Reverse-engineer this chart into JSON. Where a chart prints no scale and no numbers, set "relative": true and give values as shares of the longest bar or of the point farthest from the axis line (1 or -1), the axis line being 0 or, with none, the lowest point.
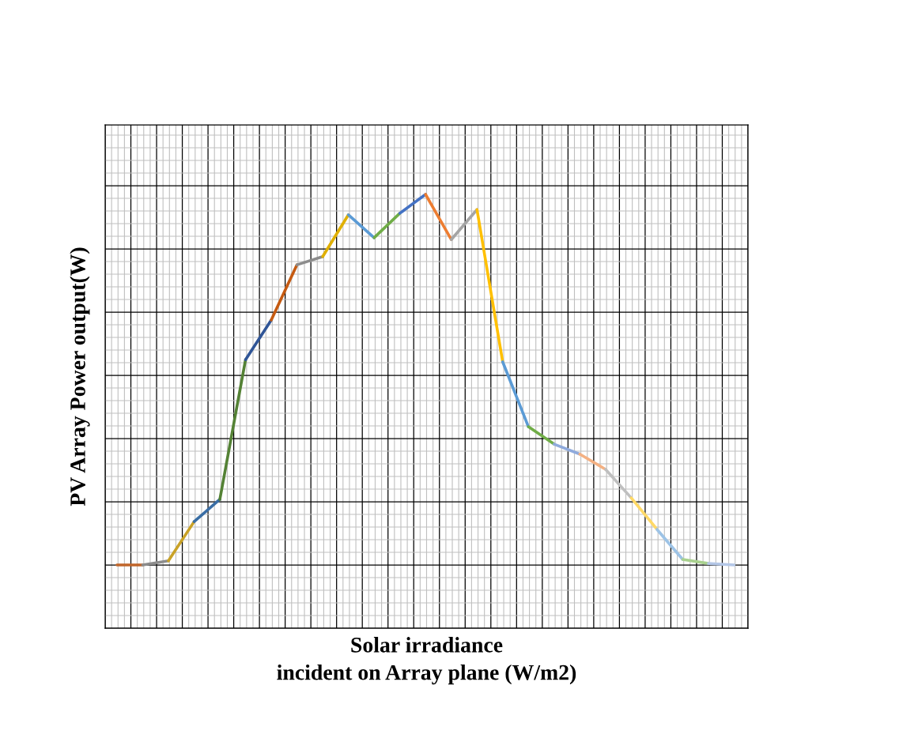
{
  "chart_data": {
    "type": "line",
    "relative": true,
    "grid": true,
    "marker": "none",
    "line_style": "solid",
    "xlabel": "Solar irradiance\nincident on Array plane (W/m2)",
    "ylabel": "PV Array Power output(W)",
    "categories": [
      null,
      null,
      null,
      null,
      null,
      null,
      null,
      null,
      null,
      null,
      null,
      null,
      null,
      null,
      null,
      null,
      null,
      null,
      null,
      null,
      null,
      null,
      null,
      null,
      null
    ],
    "series": [
      {
        "color": "#c0652a",
        "values": [
          0,
          0,
          null,
          null,
          null,
          null,
          null,
          null,
          null,
          null,
          null,
          null,
          null,
          null,
          null,
          null,
          null,
          null,
          null,
          null,
          null,
          null,
          null,
          null,
          null
        ]
      },
      {
        "color": "#8c8c8c",
        "values": [
          null,
          0,
          0.011,
          null,
          null,
          null,
          null,
          null,
          null,
          null,
          null,
          null,
          null,
          null,
          null,
          null,
          null,
          null,
          null,
          null,
          null,
          null,
          null,
          null,
          null
        ]
      },
      {
        "color": "#c9a227",
        "values": [
          null,
          null,
          0.011,
          0.117,
          null,
          null,
          null,
          null,
          null,
          null,
          null,
          null,
          null,
          null,
          null,
          null,
          null,
          null,
          null,
          null,
          null,
          null,
          null,
          null,
          null
        ]
      },
      {
        "color": "#3a6ea5",
        "values": [
          null,
          null,
          null,
          0.117,
          0.177,
          null,
          null,
          null,
          null,
          null,
          null,
          null,
          null,
          null,
          null,
          null,
          null,
          null,
          null,
          null,
          null,
          null,
          null,
          null,
          null
        ]
      },
      {
        "color": "#548235",
        "values": [
          null,
          null,
          null,
          null,
          0.177,
          0.554,
          null,
          null,
          null,
          null,
          null,
          null,
          null,
          null,
          null,
          null,
          null,
          null,
          null,
          null,
          null,
          null,
          null,
          null,
          null
        ]
      },
      {
        "color": "#2f5597",
        "values": [
          null,
          null,
          null,
          null,
          null,
          0.554,
          0.661,
          null,
          null,
          null,
          null,
          null,
          null,
          null,
          null,
          null,
          null,
          null,
          null,
          null,
          null,
          null,
          null,
          null,
          null
        ]
      },
      {
        "color": "#c55a11",
        "values": [
          null,
          null,
          null,
          null,
          null,
          null,
          0.661,
          0.81,
          null,
          null,
          null,
          null,
          null,
          null,
          null,
          null,
          null,
          null,
          null,
          null,
          null,
          null,
          null,
          null,
          null
        ]
      },
      {
        "color": "#8c8c8c",
        "values": [
          null,
          null,
          null,
          null,
          null,
          null,
          null,
          0.81,
          0.832,
          null,
          null,
          null,
          null,
          null,
          null,
          null,
          null,
          null,
          null,
          null,
          null,
          null,
          null,
          null,
          null
        ]
      },
      {
        "color": "#e0b000",
        "values": [
          null,
          null,
          null,
          null,
          null,
          null,
          null,
          null,
          0.832,
          0.945,
          null,
          null,
          null,
          null,
          null,
          null,
          null,
          null,
          null,
          null,
          null,
          null,
          null,
          null,
          null
        ]
      },
      {
        "color": "#5b9bd5",
        "values": [
          null,
          null,
          null,
          null,
          null,
          null,
          null,
          null,
          null,
          0.945,
          0.883,
          null,
          null,
          null,
          null,
          null,
          null,
          null,
          null,
          null,
          null,
          null,
          null,
          null,
          null
        ]
      },
      {
        "color": "#70ad47",
        "values": [
          null,
          null,
          null,
          null,
          null,
          null,
          null,
          null,
          null,
          null,
          0.883,
          0.949,
          null,
          null,
          null,
          null,
          null,
          null,
          null,
          null,
          null,
          null,
          null,
          null,
          null
        ]
      },
      {
        "color": "#4472c4",
        "values": [
          null,
          null,
          null,
          null,
          null,
          null,
          null,
          null,
          null,
          null,
          null,
          0.949,
          1,
          null,
          null,
          null,
          null,
          null,
          null,
          null,
          null,
          null,
          null,
          null,
          null
        ]
      },
      {
        "color": "#ed7d31",
        "values": [
          null,
          null,
          null,
          null,
          null,
          null,
          null,
          null,
          null,
          null,
          null,
          null,
          1,
          0.878,
          null,
          null,
          null,
          null,
          null,
          null,
          null,
          null,
          null,
          null,
          null
        ]
      },
      {
        "color": "#a5a5a5",
        "values": [
          null,
          null,
          null,
          null,
          null,
          null,
          null,
          null,
          null,
          null,
          null,
          null,
          null,
          0.878,
          0.959,
          null,
          null,
          null,
          null,
          null,
          null,
          null,
          null,
          null,
          null
        ]
      },
      {
        "color": "#ffc000",
        "values": [
          null,
          null,
          null,
          null,
          null,
          null,
          null,
          null,
          null,
          null,
          null,
          null,
          null,
          null,
          0.959,
          0.548,
          null,
          null,
          null,
          null,
          null,
          null,
          null,
          null,
          null
        ]
      },
      {
        "color": "#5b9bd5",
        "values": [
          null,
          null,
          null,
          null,
          null,
          null,
          null,
          null,
          null,
          null,
          null,
          null,
          null,
          null,
          null,
          0.548,
          0.373,
          null,
          null,
          null,
          null,
          null,
          null,
          null,
          null
        ]
      },
      {
        "color": "#70ad47",
        "values": [
          null,
          null,
          null,
          null,
          null,
          null,
          null,
          null,
          null,
          null,
          null,
          null,
          null,
          null,
          null,
          null,
          0.373,
          0.326,
          null,
          null,
          null,
          null,
          null,
          null,
          null
        ]
      },
      {
        "color": "#8faadc",
        "values": [
          null,
          null,
          null,
          null,
          null,
          null,
          null,
          null,
          null,
          null,
          null,
          null,
          null,
          null,
          null,
          null,
          null,
          0.326,
          0.299,
          null,
          null,
          null,
          null,
          null,
          null
        ]
      },
      {
        "color": "#f4b183",
        "values": [
          null,
          null,
          null,
          null,
          null,
          null,
          null,
          null,
          null,
          null,
          null,
          null,
          null,
          null,
          null,
          null,
          null,
          null,
          0.299,
          0.258,
          null,
          null,
          null,
          null,
          null
        ]
      },
      {
        "color": "#bfbfbf",
        "values": [
          null,
          null,
          null,
          null,
          null,
          null,
          null,
          null,
          null,
          null,
          null,
          null,
          null,
          null,
          null,
          null,
          null,
          null,
          null,
          0.258,
          0.181,
          null,
          null,
          null,
          null
        ]
      },
      {
        "color": "#ffd966",
        "values": [
          null,
          null,
          null,
          null,
          null,
          null,
          null,
          null,
          null,
          null,
          null,
          null,
          null,
          null,
          null,
          null,
          null,
          null,
          null,
          null,
          0.181,
          0.096,
          null,
          null,
          null
        ]
      },
      {
        "color": "#9dc3e6",
        "values": [
          null,
          null,
          null,
          null,
          null,
          null,
          null,
          null,
          null,
          null,
          null,
          null,
          null,
          null,
          null,
          null,
          null,
          null,
          null,
          null,
          null,
          0.096,
          0.015,
          null,
          null
        ]
      },
      {
        "color": "#a9d18e",
        "values": [
          null,
          null,
          null,
          null,
          null,
          null,
          null,
          null,
          null,
          null,
          null,
          null,
          null,
          null,
          null,
          null,
          null,
          null,
          null,
          null,
          null,
          null,
          0.015,
          0.004,
          null
        ]
      },
      {
        "color": "#b4c7e7",
        "values": [
          null,
          null,
          null,
          null,
          null,
          null,
          null,
          null,
          null,
          null,
          null,
          null,
          null,
          null,
          null,
          null,
          null,
          null,
          null,
          null,
          null,
          null,
          null,
          0.004,
          0
        ]
      }
    ]
  }
}
